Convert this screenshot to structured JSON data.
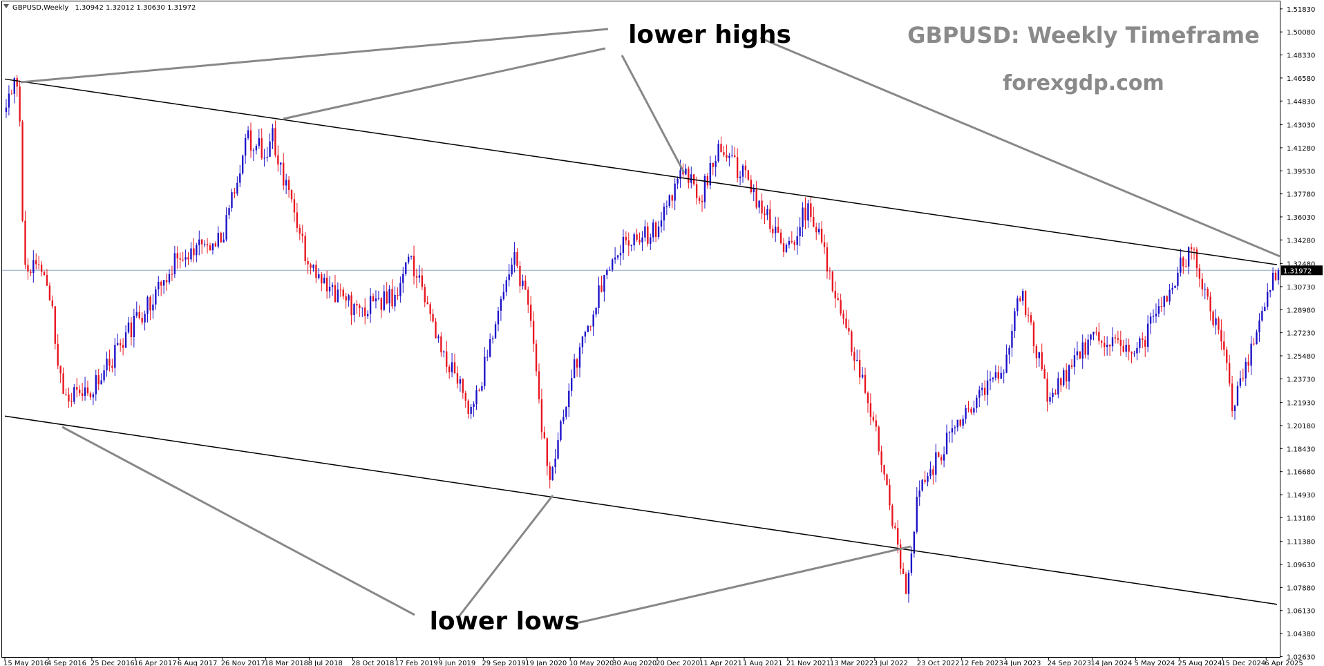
{
  "symbol_info": {
    "symbol": "GBPUSD,Weekly",
    "ohlc": "1.30942 1.32012 1.30630 1.31972"
  },
  "overlay": {
    "title": "GBPUSD: Weekly Timeframe",
    "site": "forexgdp.com"
  },
  "annotations": {
    "upper": "lower highs",
    "lower": "lower lows"
  },
  "current_price_label": "1.31972",
  "colors": {
    "bull": "#1a10c8",
    "bear": "#e8141e",
    "trendline": "#000000",
    "pointer": "#888888",
    "price_line": "#8fa5c8",
    "overlay_text": "#8a8a8a"
  },
  "chart_data": {
    "type": "candlestick",
    "title": "",
    "xlabel": "",
    "ylabel": "",
    "ylim": [
      1.026,
      1.524
    ],
    "grid": false,
    "y_ticks": [
      "1.51830",
      "1.50080",
      "1.48330",
      "1.46580",
      "1.44830",
      "1.43030",
      "1.41280",
      "1.39530",
      "1.37780",
      "1.36030",
      "1.34280",
      "1.32480",
      "1.30730",
      "1.28980",
      "1.27230",
      "1.25480",
      "1.23730",
      "1.21930",
      "1.20180",
      "1.18430",
      "1.16680",
      "1.14930",
      "1.13180",
      "1.11380",
      "1.09630",
      "1.07880",
      "1.06130",
      "1.04380",
      "1.02630"
    ],
    "x_ticks": [
      "15 May 2016",
      "4 Sep 2016",
      "25 Dec 2016",
      "16 Apr 2017",
      "6 Aug 2017",
      "26 Nov 2017",
      "18 Mar 2018",
      "8 Jul 2018",
      "28 Oct 2018",
      "17 Feb 2019",
      "9 Jun 2019",
      "29 Sep 2019",
      "19 Jan 2020",
      "10 May 2020",
      "30 Aug 2020",
      "20 Dec 2020",
      "11 Apr 2021",
      "1 Aug 2021",
      "21 Nov 2021",
      "13 Mar 2022",
      "3 Jul 2022",
      "23 Oct 2022",
      "12 Feb 2023",
      "4 Jun 2023",
      "24 Sep 2023",
      "14 Jan 2024",
      "5 May 2024",
      "25 Aug 2024",
      "15 Dec 2024",
      "6 Apr 2025"
    ],
    "price_anchors": [
      [
        "15 May 2016",
        1.44
      ],
      [
        "19 Jun 2016",
        1.47
      ],
      [
        "3 Jul 2016",
        1.33
      ],
      [
        "4 Sep 2016",
        1.31
      ],
      [
        "9 Oct 2016",
        1.225
      ],
      [
        "25 Dec 2016",
        1.23
      ],
      [
        "16 Apr 2017",
        1.28
      ],
      [
        "6 Aug 2017",
        1.33
      ],
      [
        "26 Nov 2017",
        1.345
      ],
      [
        "28 Jan 2018",
        1.42
      ],
      [
        "18 Mar 2018",
        1.41
      ],
      [
        "1 Apr 2018",
        1.425
      ],
      [
        "8 Jul 2018",
        1.32
      ],
      [
        "28 Oct 2018",
        1.29
      ],
      [
        "17 Feb 2019",
        1.3
      ],
      [
        "24 Mar 2019",
        1.33
      ],
      [
        "9 Jun 2019",
        1.265
      ],
      [
        "1 Sep 2019",
        1.21
      ],
      [
        "15 Dec 2019",
        1.33
      ],
      [
        "19 Jan 2020",
        1.3
      ],
      [
        "15 Mar 2020",
        1.16
      ],
      [
        "10 May 2020",
        1.235
      ],
      [
        "30 Aug 2020",
        1.335
      ],
      [
        "20 Dec 2020",
        1.35
      ],
      [
        "21 Feb 2021",
        1.4
      ],
      [
        "11 Apr 2021",
        1.375
      ],
      [
        "30 May 2021",
        1.415
      ],
      [
        "1 Aug 2021",
        1.39
      ],
      [
        "21 Nov 2021",
        1.335
      ],
      [
        "13 Jan 2022",
        1.37
      ],
      [
        "13 Mar 2022",
        1.315
      ],
      [
        "3 Jul 2022",
        1.2
      ],
      [
        "25 Sep 2022",
        1.075
      ],
      [
        "23 Oct 2022",
        1.15
      ],
      [
        "12 Feb 2023",
        1.21
      ],
      [
        "4 Jun 2023",
        1.25
      ],
      [
        "16 Jul 2023",
        1.305
      ],
      [
        "24 Sep 2023",
        1.22
      ],
      [
        "14 Jan 2024",
        1.27
      ],
      [
        "5 May 2024",
        1.255
      ],
      [
        "25 Aug 2024",
        1.32
      ],
      [
        "29 Sep 2024",
        1.335
      ],
      [
        "15 Dec 2024",
        1.26
      ],
      [
        "12 Jan 2025",
        1.215
      ],
      [
        "6 Apr 2025",
        1.3
      ],
      [
        "27 Apr 2025",
        1.32
      ]
    ],
    "trendlines": [
      {
        "role": "resistance",
        "from": [
          "15 May 2016",
          1.465
        ],
        "to": [
          "4 May 2025",
          1.324
        ]
      },
      {
        "role": "support",
        "from": [
          "15 May 2016",
          1.209
        ],
        "to": [
          "4 May 2025",
          1.066
        ]
      }
    ],
    "current_price": 1.31972
  }
}
